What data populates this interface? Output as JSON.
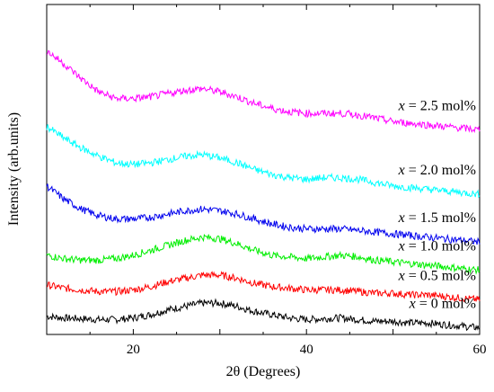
{
  "chart_data": {
    "type": "line",
    "title": "",
    "xlabel": "2θ (Degrees)",
    "ylabel": "Intensity (arb.units)",
    "xlim": [
      10,
      60
    ],
    "ylim": [
      0,
      10
    ],
    "x_ticks": [
      20,
      40,
      60
    ],
    "y_ticks": [],
    "grid": false,
    "legend": "inline labels at the right end of each trace",
    "x": [
      10,
      12,
      14,
      16,
      18,
      20,
      22,
      24,
      26,
      28,
      30,
      32,
      34,
      36,
      38,
      40,
      42,
      44,
      46,
      48,
      50,
      52,
      54,
      56,
      58,
      60
    ],
    "series": [
      {
        "name": "x = 0 mol%",
        "label_prefix": "x",
        "label_rest": " = 0 mol%",
        "color": "#000000",
        "values": [
          0.55,
          0.5,
          0.48,
          0.45,
          0.45,
          0.5,
          0.6,
          0.75,
          0.85,
          0.95,
          0.95,
          0.85,
          0.7,
          0.6,
          0.5,
          0.45,
          0.48,
          0.5,
          0.45,
          0.4,
          0.4,
          0.35,
          0.35,
          0.3,
          0.25,
          0.2
        ]
      },
      {
        "name": "x = 0.5 mol%",
        "label_prefix": "x",
        "label_rest": " = 0.5 mol%",
        "color": "#ff0000",
        "values": [
          1.5,
          1.4,
          1.35,
          1.3,
          1.3,
          1.35,
          1.45,
          1.6,
          1.7,
          1.8,
          1.8,
          1.7,
          1.55,
          1.45,
          1.4,
          1.35,
          1.35,
          1.35,
          1.3,
          1.25,
          1.25,
          1.2,
          1.2,
          1.15,
          1.1,
          1.05
        ]
      },
      {
        "name": "x = 1.0 mol%",
        "label_prefix": "x",
        "label_rest": " = 1.0 mol%",
        "color": "#00ee00",
        "values": [
          2.4,
          2.3,
          2.25,
          2.25,
          2.3,
          2.4,
          2.55,
          2.7,
          2.85,
          2.95,
          2.9,
          2.75,
          2.55,
          2.4,
          2.35,
          2.3,
          2.35,
          2.4,
          2.35,
          2.25,
          2.2,
          2.15,
          2.1,
          2.05,
          2.0,
          1.95
        ]
      },
      {
        "name": "x = 1.5 mol%",
        "label_prefix": "x",
        "label_rest": " = 1.5 mol%",
        "color": "#0000ee",
        "values": [
          4.5,
          4.1,
          3.8,
          3.6,
          3.5,
          3.5,
          3.55,
          3.65,
          3.75,
          3.8,
          3.75,
          3.65,
          3.5,
          3.35,
          3.25,
          3.2,
          3.2,
          3.2,
          3.15,
          3.1,
          3.05,
          3.0,
          2.95,
          2.9,
          2.85,
          2.8
        ]
      },
      {
        "name": "x = 2.0 mol%",
        "label_prefix": "x",
        "label_rest": " = 2.0 mol%",
        "color": "#00ffff",
        "values": [
          6.3,
          5.95,
          5.65,
          5.4,
          5.2,
          5.15,
          5.2,
          5.3,
          5.4,
          5.45,
          5.35,
          5.2,
          5.0,
          4.85,
          4.75,
          4.7,
          4.75,
          4.75,
          4.7,
          4.6,
          4.5,
          4.45,
          4.4,
          4.35,
          4.3,
          4.25
        ]
      },
      {
        "name": "x = 2.5 mol%",
        "label_prefix": "x",
        "label_rest": " = 2.5 mol%",
        "color": "#ff00ff",
        "values": [
          8.6,
          8.2,
          7.75,
          7.35,
          7.15,
          7.15,
          7.2,
          7.3,
          7.4,
          7.45,
          7.35,
          7.2,
          7.0,
          6.85,
          6.75,
          6.7,
          6.7,
          6.7,
          6.65,
          6.55,
          6.45,
          6.4,
          6.35,
          6.3,
          6.25,
          6.2
        ]
      }
    ]
  }
}
